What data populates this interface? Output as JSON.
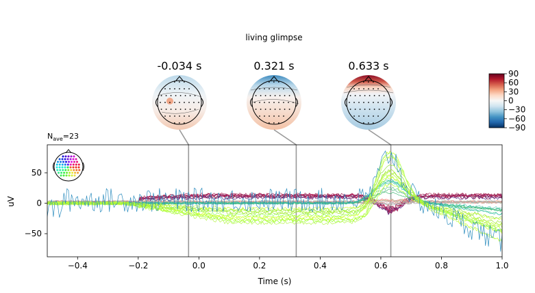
{
  "title": "living glimpse",
  "nave_label": "N",
  "nave_sub": "ave",
  "nave_value": "=23",
  "chart_data": {
    "type": "line",
    "title": "living glimpse",
    "xlabel": "Time (s)",
    "ylabel": "uV",
    "xlim": [
      -0.5,
      1.0
    ],
    "ylim": [
      -88,
      96
    ],
    "xticks": [
      -0.4,
      -0.2,
      0.0,
      0.2,
      0.4,
      0.6,
      0.8,
      1.0
    ],
    "xtick_labels": [
      "−0.4",
      "−0.2",
      "0.0",
      "0.2",
      "0.4",
      "0.6",
      "0.8",
      "1.0"
    ],
    "yticks": [
      50,
      0,
      -50
    ],
    "ytick_labels": [
      "50",
      "0",
      "−50"
    ],
    "topomap_times": [
      -0.034,
      0.321,
      0.633
    ],
    "topomap_labels": [
      "-0.034 s",
      "0.321 s",
      "0.633 s"
    ],
    "colorbar": {
      "ticks": [
        90,
        60,
        30,
        0,
        -30,
        -60,
        -90
      ],
      "tick_labels": [
        "90",
        "60",
        "30",
        "0",
        "−30",
        "−60",
        "−90"
      ],
      "range": [
        -90,
        90
      ],
      "colors": [
        "#67001f",
        "#b2182b",
        "#d6604d",
        "#f4a582",
        "#fddbc7",
        "#f7f7f7",
        "#d1e5f0",
        "#92c5de",
        "#4393c3",
        "#2166ac",
        "#053061"
      ]
    },
    "series_summary": [
      {
        "group": "highlighted channel",
        "color": "#2b8cbe",
        "peak_uV": 87,
        "peak_time_s": 0.63,
        "end_uV": -70
      },
      {
        "group": "frontal (yellow-green)",
        "color": "#adff2f",
        "min_uV": -35,
        "peak_time_s": 0.63,
        "end_uV": -78
      },
      {
        "group": "posterior (dark red)",
        "color": "#8b0a2a",
        "mean_uV": 10,
        "min_uV": -18,
        "peak_time_s": 0.63
      }
    ]
  }
}
